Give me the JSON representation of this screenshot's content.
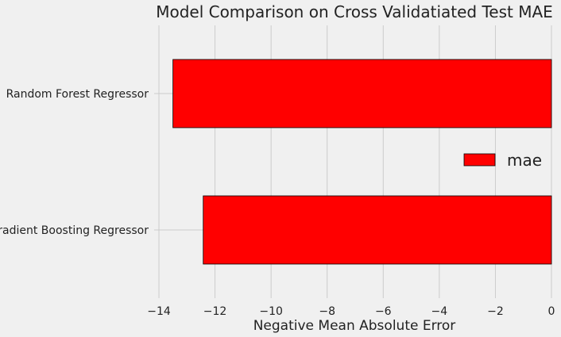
{
  "chart_data": {
    "type": "bar",
    "orientation": "horizontal",
    "title": "Model Comparison on Cross Validatiated Test MAE",
    "xlabel": "Negative Mean Absolute Error",
    "ylabel": "",
    "categories": [
      "Random Forest Regressor",
      "Gradient Boosting Regressor"
    ],
    "series": [
      {
        "name": "mae",
        "values": [
          -13.5,
          -12.42
        ],
        "color": "#ff0000"
      }
    ],
    "xlim": [
      -14.0,
      0.0
    ],
    "xticks": [
      -14,
      -12,
      -10,
      -8,
      -6,
      -4,
      -2,
      0
    ],
    "xtick_labels": [
      "−14",
      "−12",
      "−10",
      "−8",
      "−6",
      "−4",
      "−2",
      "0"
    ],
    "grid": true,
    "legend_position": "right",
    "bar_edge_color": "#000000"
  }
}
